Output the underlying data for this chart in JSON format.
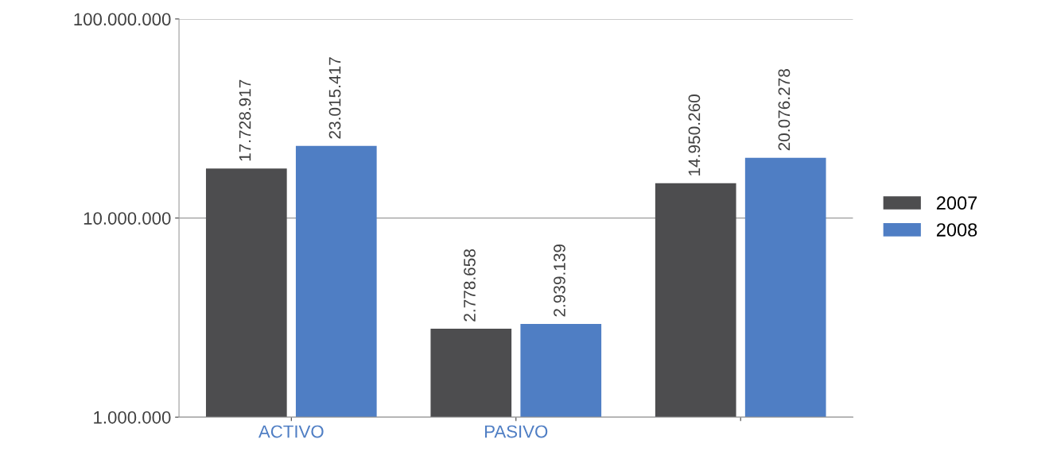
{
  "chart_data": {
    "type": "bar",
    "categories": [
      "ACTIVO",
      "PASIVO",
      null
    ],
    "series": [
      {
        "name": "2007",
        "color": "#4d4d4f",
        "values": [
          17728917,
          2778658,
          14950260
        ],
        "value_labels": [
          "17.728.917",
          "2.778.658",
          "14.950.260"
        ]
      },
      {
        "name": "2008",
        "color": "#4f7ec4",
        "values": [
          23015417,
          2939139,
          20076278
        ],
        "value_labels": [
          "23.015.417",
          "2.939.139",
          "20.076.278"
        ]
      }
    ],
    "log": "y",
    "ylim": [
      1000000,
      100000000
    ],
    "yticks": [
      {
        "value": 1000000,
        "label": "1.000.000"
      },
      {
        "value": 10000000,
        "label": "10.000.000"
      },
      {
        "value": 100000000,
        "label": "100.000.000"
      }
    ],
    "grid": "y",
    "legend": "right"
  }
}
